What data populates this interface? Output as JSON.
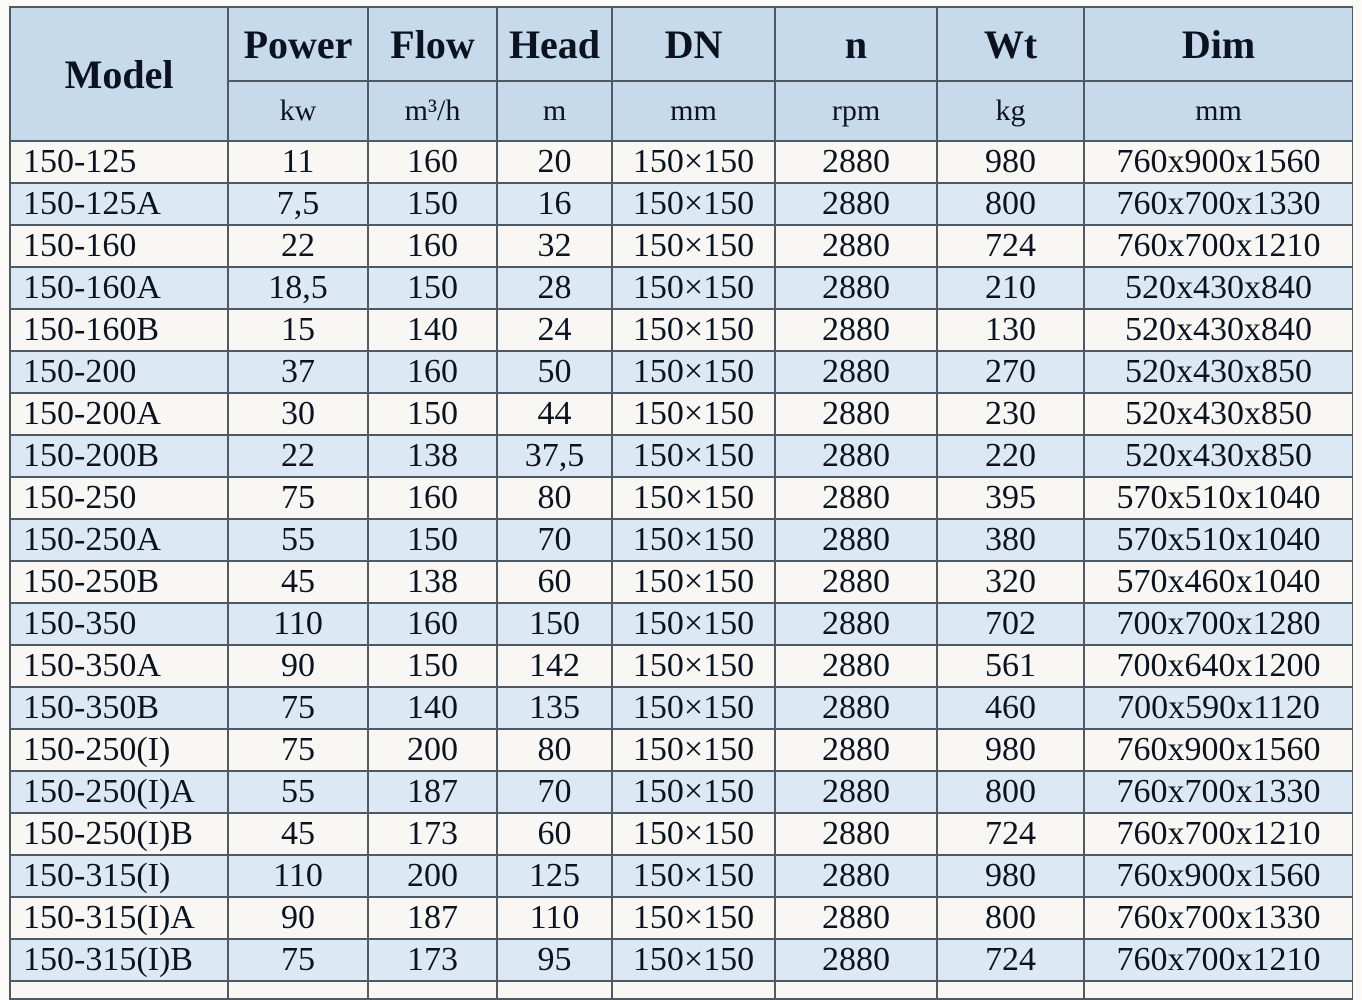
{
  "table": {
    "columns": [
      {
        "key": "model",
        "label": "Model",
        "unit": ""
      },
      {
        "key": "power",
        "label": "Power",
        "unit": "kw"
      },
      {
        "key": "flow",
        "label": "Flow",
        "unit": "m³/h"
      },
      {
        "key": "head",
        "label": "Head",
        "unit": "m"
      },
      {
        "key": "dn",
        "label": "DN",
        "unit": "mm"
      },
      {
        "key": "n",
        "label": "n",
        "unit": "rpm"
      },
      {
        "key": "wt",
        "label": "Wt",
        "unit": "kg"
      },
      {
        "key": "dim",
        "label": "Dim",
        "unit": "mm"
      }
    ],
    "rows": [
      [
        "150-125",
        "11",
        "160",
        "20",
        "150×150",
        "2880",
        "980",
        "760x900x1560"
      ],
      [
        "150-125A",
        "7,5",
        "150",
        "16",
        "150×150",
        "2880",
        "800",
        "760x700x1330"
      ],
      [
        "150-160",
        "22",
        "160",
        "32",
        "150×150",
        "2880",
        "724",
        "760x700x1210"
      ],
      [
        "150-160A",
        "18,5",
        "150",
        "28",
        "150×150",
        "2880",
        "210",
        "520x430x840"
      ],
      [
        "150-160B",
        "15",
        "140",
        "24",
        "150×150",
        "2880",
        "130",
        "520x430x840"
      ],
      [
        "150-200",
        "37",
        "160",
        "50",
        "150×150",
        "2880",
        "270",
        "520x430x850"
      ],
      [
        "150-200A",
        "30",
        "150",
        "44",
        "150×150",
        "2880",
        "230",
        "520x430x850"
      ],
      [
        "150-200B",
        "22",
        "138",
        "37,5",
        "150×150",
        "2880",
        "220",
        "520x430x850"
      ],
      [
        "150-250",
        "75",
        "160",
        "80",
        "150×150",
        "2880",
        "395",
        "570x510x1040"
      ],
      [
        "150-250A",
        "55",
        "150",
        "70",
        "150×150",
        "2880",
        "380",
        "570x510x1040"
      ],
      [
        "150-250B",
        "45",
        "138",
        "60",
        "150×150",
        "2880",
        "320",
        "570x460x1040"
      ],
      [
        "150-350",
        "110",
        "160",
        "150",
        "150×150",
        "2880",
        "702",
        "700x700x1280"
      ],
      [
        "150-350A",
        "90",
        "150",
        "142",
        "150×150",
        "2880",
        "561",
        "700x640x1200"
      ],
      [
        "150-350B",
        "75",
        "140",
        "135",
        "150×150",
        "2880",
        "460",
        "700x590x1120"
      ],
      [
        "150-250(I)",
        "75",
        "200",
        "80",
        "150×150",
        "2880",
        "980",
        "760x900x1560"
      ],
      [
        "150-250(I)A",
        "55",
        "187",
        "70",
        "150×150",
        "2880",
        "800",
        "760x700x1330"
      ],
      [
        "150-250(I)B",
        "45",
        "173",
        "60",
        "150×150",
        "2880",
        "724",
        "760x700x1210"
      ],
      [
        "150-315(I)",
        "110",
        "200",
        "125",
        "150×150",
        "2880",
        "980",
        "760x900x1560"
      ],
      [
        "150-315(I)A",
        "90",
        "187",
        "110",
        "150×150",
        "2880",
        "800",
        "760x700x1330"
      ],
      [
        "150-315(I)B",
        "75",
        "173",
        "95",
        "150×150",
        "2880",
        "724",
        "760x700x1210"
      ]
    ]
  },
  "colors": {
    "header_bg": "#c7daeb",
    "stripe_row_bg": "#dce9f5",
    "plain_row_bg": "#f8f7f4",
    "border": "#4e5a64",
    "text": "#0c1320"
  }
}
